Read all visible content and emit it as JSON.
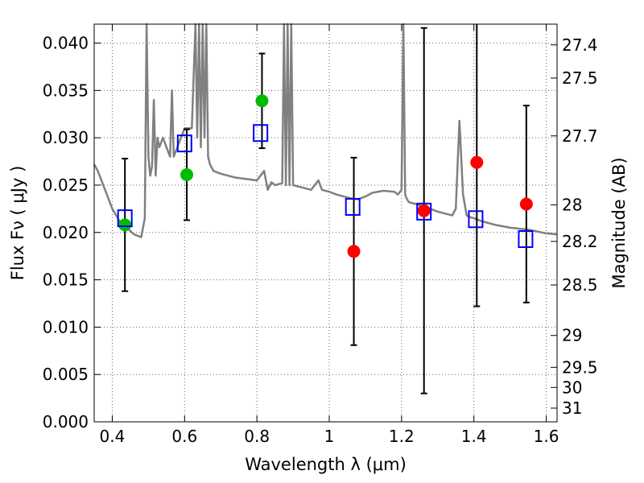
{
  "chart_data": {
    "type": "scatter",
    "title": "",
    "xlabel": "Wavelength  λ (μm)",
    "ylabel": "Flux  Fν  ( μJy )",
    "ylabel_right": "Magnitude (AB)",
    "xlim": [
      0.35,
      1.63
    ],
    "ylim": [
      0.0,
      0.042
    ],
    "grid": true,
    "x_ticks": [
      0.4,
      0.6,
      0.8,
      1.0,
      1.2,
      1.4,
      1.6
    ],
    "x_tick_labels": [
      "0.4",
      "0.6",
      "0.8",
      "1",
      "1.2",
      "1.4",
      "1.6"
    ],
    "y_ticks": [
      0.0,
      0.005,
      0.01,
      0.015,
      0.02,
      0.025,
      0.03,
      0.035,
      0.04
    ],
    "y_tick_labels": [
      "0.000",
      "0.005",
      "0.010",
      "0.015",
      "0.020",
      "0.025",
      "0.030",
      "0.035",
      "0.040"
    ],
    "right_ticks": [
      27.4,
      27.5,
      27.7,
      28,
      28.2,
      28.5,
      29,
      29.5,
      30,
      31
    ],
    "right_tick_labels": [
      "27.4",
      "27.5",
      "27.7",
      "28",
      "28.2",
      "28.5",
      "29",
      "29.5",
      "30",
      "31"
    ],
    "series": [
      {
        "kind": "green-points",
        "color": "#00bb00",
        "x": [
          0.435,
          0.606,
          0.814
        ],
        "y": [
          0.0208,
          0.0261,
          0.0339
        ],
        "err": [
          0.007,
          0.0048,
          0.005
        ]
      },
      {
        "kind": "red-points",
        "color": "#ff0000",
        "x": [
          1.068,
          1.262,
          1.408,
          1.545
        ],
        "y": [
          0.018,
          0.0223,
          0.0274,
          0.023
        ],
        "err": [
          0.0099,
          0.0193,
          0.0152,
          0.0104
        ]
      },
      {
        "kind": "model-squares",
        "color": "#0000ff",
        "x": [
          0.435,
          0.6,
          0.81,
          1.065,
          1.262,
          1.405,
          1.543
        ],
        "y": [
          0.0215,
          0.0294,
          0.0305,
          0.0227,
          0.0222,
          0.0214,
          0.0193
        ]
      },
      {
        "kind": "model-spectrum",
        "color": "#808080",
        "x": [
          0.35,
          0.36,
          0.38,
          0.4,
          0.42,
          0.44,
          0.46,
          0.48,
          0.49,
          0.495,
          0.5,
          0.505,
          0.51,
          0.515,
          0.52,
          0.525,
          0.53,
          0.54,
          0.55,
          0.56,
          0.565,
          0.57,
          0.58,
          0.59,
          0.6,
          0.62,
          0.63,
          0.635,
          0.64,
          0.645,
          0.65,
          0.655,
          0.66,
          0.665,
          0.67,
          0.68,
          0.7,
          0.72,
          0.74,
          0.76,
          0.78,
          0.8,
          0.82,
          0.83,
          0.84,
          0.85,
          0.87,
          0.875,
          0.88,
          0.885,
          0.89,
          0.895,
          0.9,
          0.92,
          0.95,
          0.97,
          0.98,
          1.0,
          1.02,
          1.04,
          1.06,
          1.08,
          1.1,
          1.12,
          1.15,
          1.18,
          1.19,
          1.2,
          1.205,
          1.21,
          1.215,
          1.22,
          1.24,
          1.26,
          1.28,
          1.3,
          1.32,
          1.34,
          1.35,
          1.36,
          1.37,
          1.38,
          1.39,
          1.4,
          1.42,
          1.44,
          1.46,
          1.5,
          1.55,
          1.6,
          1.63
        ],
        "y": [
          0.0272,
          0.0265,
          0.0245,
          0.0225,
          0.0212,
          0.0205,
          0.0198,
          0.0195,
          0.0215,
          0.042,
          0.028,
          0.026,
          0.027,
          0.034,
          0.026,
          0.03,
          0.029,
          0.03,
          0.029,
          0.028,
          0.035,
          0.028,
          0.029,
          0.03,
          0.031,
          0.031,
          0.042,
          0.03,
          0.042,
          0.029,
          0.042,
          0.03,
          0.042,
          0.028,
          0.0272,
          0.0265,
          0.0262,
          0.026,
          0.0258,
          0.0257,
          0.0256,
          0.0255,
          0.0265,
          0.0245,
          0.0253,
          0.025,
          0.0252,
          0.042,
          0.025,
          0.042,
          0.025,
          0.042,
          0.025,
          0.0248,
          0.0245,
          0.0255,
          0.0245,
          0.0243,
          0.024,
          0.0238,
          0.0236,
          0.0235,
          0.0238,
          0.0242,
          0.0244,
          0.0243,
          0.024,
          0.0245,
          0.042,
          0.024,
          0.0235,
          0.0232,
          0.023,
          0.0227,
          0.0225,
          0.0222,
          0.022,
          0.0218,
          0.0225,
          0.0318,
          0.024,
          0.0218,
          0.0216,
          0.0215,
          0.0212,
          0.021,
          0.0208,
          0.0205,
          0.0203,
          0.0199,
          0.0198
        ]
      }
    ]
  }
}
